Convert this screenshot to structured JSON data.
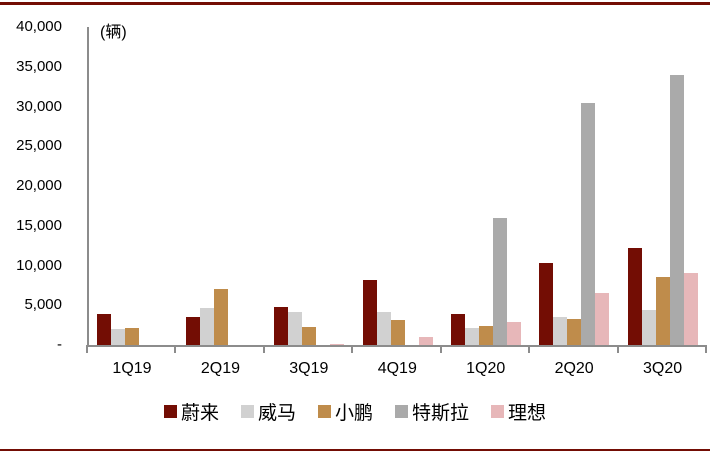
{
  "frame": {
    "accent_color": "#730d04",
    "background": "#ffffff"
  },
  "chart_data": {
    "type": "bar",
    "title": "",
    "unit_label": "(辆)",
    "xlabel": "",
    "ylabel": "",
    "categories": [
      "1Q19",
      "2Q19",
      "3Q19",
      "4Q19",
      "1Q20",
      "2Q20",
      "3Q20"
    ],
    "series": [
      {
        "name": "蔚来",
        "color": "#730d04",
        "values": [
          3900,
          3550,
          4800,
          8200,
          3850,
          10300,
          12250
        ]
      },
      {
        "name": "威马",
        "color": "#d1d1d1",
        "values": [
          2050,
          4600,
          4100,
          4100,
          2200,
          3500,
          4400
        ]
      },
      {
        "name": "小鹏",
        "color": "#bf8c4b",
        "values": [
          2200,
          7100,
          2300,
          3200,
          2350,
          3250,
          8600
        ]
      },
      {
        "name": "特斯拉",
        "color": "#aaaaaa",
        "values": [
          0,
          0,
          0,
          0,
          16000,
          30500,
          34000
        ]
      },
      {
        "name": "理想",
        "color": "#e7b7b9",
        "values": [
          0,
          0,
          150,
          1000,
          2900,
          6600,
          9000
        ]
      }
    ],
    "ylim": [
      0,
      40000
    ],
    "ytick_step": 5000,
    "ytick_labels": [
      "-",
      "5,000",
      "10,000",
      "15,000",
      "20,000",
      "25,000",
      "30,000",
      "35,000",
      "40,000"
    ],
    "grid": false,
    "legend_position": "bottom",
    "axis_color": "#8c8c8c"
  }
}
